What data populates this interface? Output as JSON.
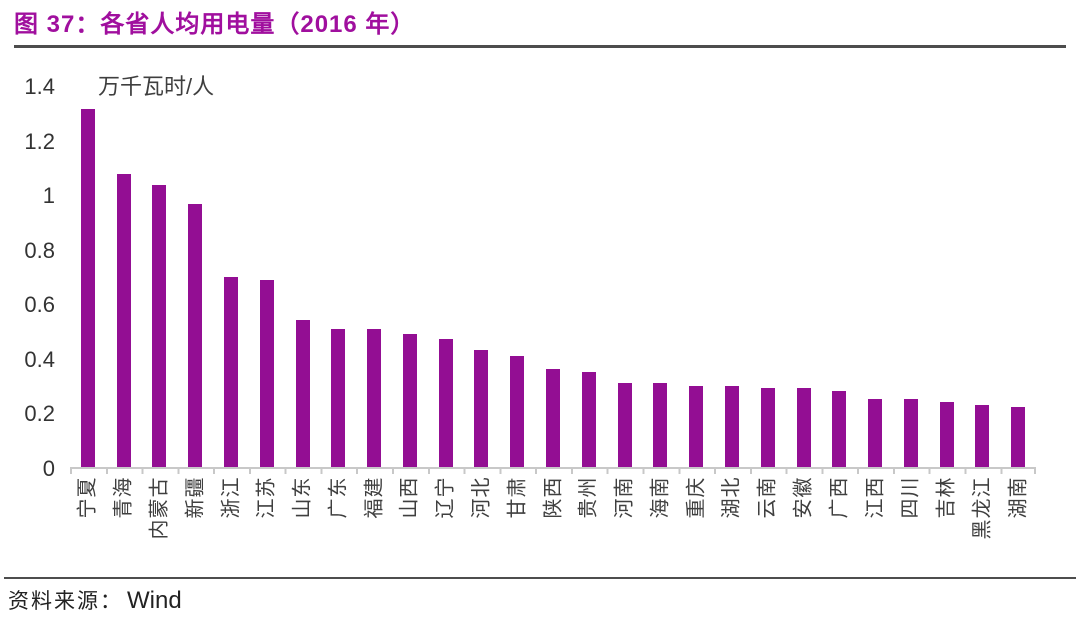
{
  "header": {
    "title": "图 37：各省人均用电量（2016 年）"
  },
  "footer": {
    "source_label": "资料来源：",
    "source_value": "Wind"
  },
  "colors": {
    "title_purple": "#a00f9e",
    "bar_purple": "#930e93",
    "axis_gray": "#c8c8c8",
    "rule_dark": "#4d4d4d",
    "text_dark": "#3f3f3f"
  },
  "chart_data": {
    "type": "bar",
    "title": "各省人均用电量（2016 年）",
    "unit_label": "万千瓦时/人",
    "xlabel": "",
    "ylabel": "万千瓦时/人",
    "ylim": [
      0,
      1.4
    ],
    "y_ticks": [
      "1.4",
      "1.2",
      "1",
      "0.8",
      "0.6",
      "0.4",
      "0.2",
      "0"
    ],
    "y_tick_values": [
      1.4,
      1.2,
      1.0,
      0.8,
      0.6,
      0.4,
      0.2,
      0
    ],
    "grid": false,
    "legend_position": "none",
    "categories": [
      "宁夏",
      "青海",
      "内蒙古",
      "新疆",
      "浙江",
      "江苏",
      "山东",
      "广东",
      "福建",
      "山西",
      "辽宁",
      "河北",
      "甘肃",
      "陕西",
      "贵州",
      "河南",
      "海南",
      "重庆",
      "湖北",
      "云南",
      "安徽",
      "广西",
      "江西",
      "四川",
      "吉林",
      "黑龙江",
      "湖南"
    ],
    "values": [
      1.32,
      1.08,
      1.04,
      0.97,
      0.7,
      0.69,
      0.54,
      0.51,
      0.51,
      0.49,
      0.47,
      0.43,
      0.41,
      0.36,
      0.35,
      0.31,
      0.31,
      0.3,
      0.3,
      0.29,
      0.29,
      0.28,
      0.25,
      0.25,
      0.24,
      0.23,
      0.22
    ]
  }
}
